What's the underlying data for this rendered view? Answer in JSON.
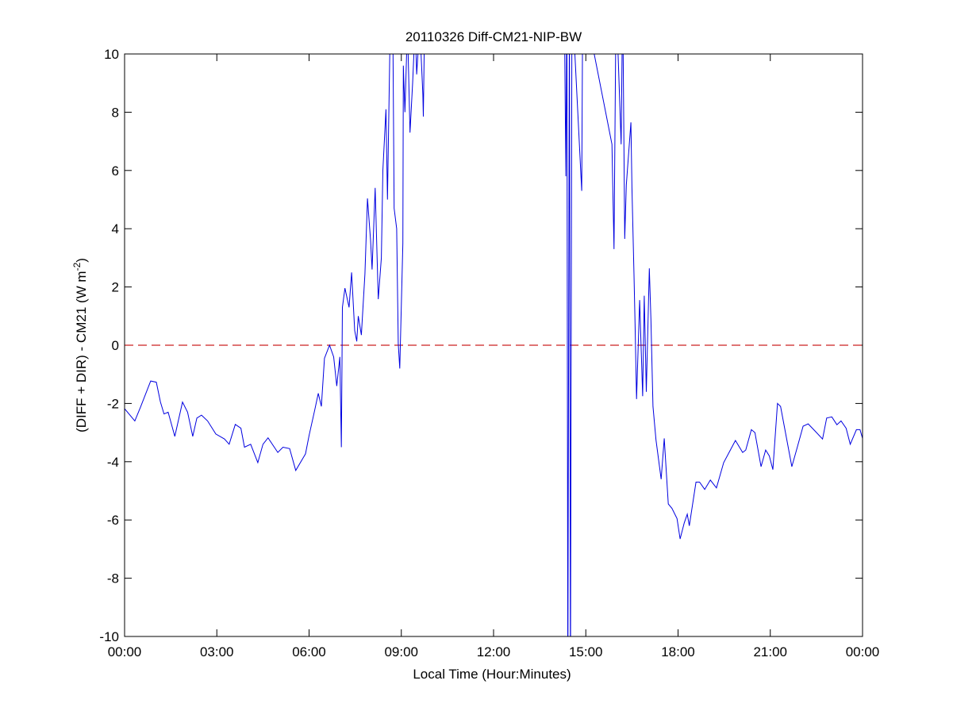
{
  "chart_data": {
    "type": "line",
    "title": "20110326 Diff-CM21-NIP-BW",
    "xlabel": "Local Time (Hour:Minutes)",
    "ylabel": "(DIFF + DIR) - CM21 (W m",
    "ylabel_sup": "-2",
    "ylabel_end": ")",
    "xlim": [
      "00:00",
      "24:00"
    ],
    "ylim": [
      -10,
      10
    ],
    "xticks": [
      "00:00",
      "03:00",
      "06:00",
      "09:00",
      "12:00",
      "15:00",
      "18:00",
      "21:00",
      "00:00"
    ],
    "yticks": [
      -10,
      -8,
      -6,
      -4,
      -2,
      0,
      2,
      4,
      6,
      8,
      10
    ],
    "grid": false,
    "line_color": "#0000e0",
    "reference_line": {
      "y": 0,
      "style": "dashed",
      "color": "#cc2222"
    },
    "series": [
      {
        "points": [
          [
            "00:00",
            -2.18
          ],
          [
            "00:20",
            -2.6
          ],
          [
            "00:31",
            -2.13
          ],
          [
            "00:51",
            -1.23
          ],
          [
            "01:02",
            -1.27
          ],
          [
            "01:10",
            -1.95
          ],
          [
            "01:17",
            -2.36
          ],
          [
            "01:25",
            -2.3
          ],
          [
            "01:38",
            -3.13
          ],
          [
            "01:53",
            -1.95
          ],
          [
            "02:03",
            -2.3
          ],
          [
            "02:13",
            -3.13
          ],
          [
            "02:21",
            -2.5
          ],
          [
            "02:30",
            -2.4
          ],
          [
            "02:42",
            -2.6
          ],
          [
            "02:58",
            -3.05
          ],
          [
            "03:15",
            -3.22
          ],
          [
            "03:24",
            -3.4
          ],
          [
            "03:36",
            -2.72
          ],
          [
            "03:47",
            -2.85
          ],
          [
            "03:54",
            -3.5
          ],
          [
            "04:06",
            -3.4
          ],
          [
            "04:20",
            -4.03
          ],
          [
            "04:30",
            -3.4
          ],
          [
            "04:40",
            -3.18
          ],
          [
            "04:59",
            -3.68
          ],
          [
            "05:09",
            -3.5
          ],
          [
            "05:22",
            -3.55
          ],
          [
            "05:34",
            -4.3
          ],
          [
            "05:53",
            -3.73
          ],
          [
            "06:00",
            -3.1
          ],
          [
            "06:11",
            -2.23
          ],
          [
            "06:18",
            -1.65
          ],
          [
            "06:24",
            -2.1
          ],
          [
            "06:30",
            -0.45
          ],
          [
            "06:40",
            0
          ],
          [
            "06:48",
            -0.4
          ],
          [
            "06:54",
            -1.4
          ],
          [
            "07:00",
            -0.4
          ],
          [
            "07:03",
            -3.5
          ],
          [
            "07:05",
            1.3
          ],
          [
            "07:10",
            1.96
          ],
          [
            "07:18",
            1.3
          ],
          [
            "07:23",
            2.5
          ],
          [
            "07:29",
            0.5
          ],
          [
            "07:33",
            0.13
          ],
          [
            "07:36",
            1.0
          ],
          [
            "07:42",
            0.35
          ],
          [
            "07:49",
            2.45
          ],
          [
            "07:54",
            5.04
          ],
          [
            "08:00",
            3.6
          ],
          [
            "08:03",
            2.6
          ],
          [
            "08:09",
            5.4
          ],
          [
            "08:15",
            1.58
          ],
          [
            "08:21",
            3.0
          ],
          [
            "08:24",
            6.0
          ],
          [
            "08:30",
            8.1
          ],
          [
            "08:33",
            5.0
          ],
          [
            "08:38",
            10.5
          ],
          [
            "08:43",
            12
          ],
          [
            "08:46",
            4.7
          ],
          [
            "08:51",
            4.0
          ],
          [
            "08:54",
            0.05
          ],
          [
            "08:57",
            -0.8
          ],
          [
            "09:03",
            3.5
          ],
          [
            "09:04",
            9.6
          ],
          [
            "09:07",
            8.0
          ],
          [
            "09:12",
            11
          ],
          [
            "09:17",
            7.3
          ],
          [
            "09:22",
            9.0
          ],
          [
            "09:27",
            11
          ],
          [
            "09:30",
            9.3
          ],
          [
            "09:36",
            11
          ],
          [
            "09:42",
            8.6
          ],
          [
            "09:43",
            7.85
          ],
          [
            "09:46",
            12
          ],
          [
            "14:18",
            12
          ],
          [
            "14:21",
            5.8
          ],
          [
            "14:23",
            12
          ],
          [
            "14:25",
            -12
          ],
          [
            "14:28",
            12
          ],
          [
            "14:30",
            -12
          ],
          [
            "14:33",
            12
          ],
          [
            "14:52",
            5.3
          ],
          [
            "14:54",
            12
          ],
          [
            "15:51",
            6.9
          ],
          [
            "15:55",
            3.3
          ],
          [
            "15:59",
            12
          ],
          [
            "16:09",
            6.9
          ],
          [
            "16:12",
            12
          ],
          [
            "16:16",
            3.65
          ],
          [
            "16:19",
            5.5
          ],
          [
            "16:28",
            7.65
          ],
          [
            "16:30",
            5.4
          ],
          [
            "16:34",
            2.4
          ],
          [
            "16:36",
            0.76
          ],
          [
            "16:39",
            -1.85
          ],
          [
            "16:45",
            1.55
          ],
          [
            "16:51",
            -1.75
          ],
          [
            "16:54",
            1.7
          ],
          [
            "16:58",
            -1.6
          ],
          [
            "17:04",
            2.64
          ],
          [
            "17:07",
            0.9
          ],
          [
            "17:11",
            -2.1
          ],
          [
            "17:17",
            -3.25
          ],
          [
            "17:27",
            -4.6
          ],
          [
            "17:33",
            -3.2
          ],
          [
            "17:41",
            -5.45
          ],
          [
            "17:48",
            -5.6
          ],
          [
            "17:58",
            -5.95
          ],
          [
            "18:04",
            -6.65
          ],
          [
            "18:12",
            -6.1
          ],
          [
            "18:18",
            -5.8
          ],
          [
            "18:22",
            -6.2
          ],
          [
            "18:35",
            -4.7
          ],
          [
            "18:42",
            -4.7
          ],
          [
            "18:52",
            -4.95
          ],
          [
            "19:03",
            -4.63
          ],
          [
            "19:15",
            -4.9
          ],
          [
            "19:29",
            -4.03
          ],
          [
            "19:42",
            -3.6
          ],
          [
            "19:52",
            -3.27
          ],
          [
            "20:06",
            -3.68
          ],
          [
            "20:12",
            -3.6
          ],
          [
            "20:23",
            -2.9
          ],
          [
            "20:30",
            -3.0
          ],
          [
            "20:42",
            -4.17
          ],
          [
            "20:51",
            -3.6
          ],
          [
            "20:58",
            -3.8
          ],
          [
            "21:05",
            -4.27
          ],
          [
            "21:14",
            -2.0
          ],
          [
            "21:20",
            -2.1
          ],
          [
            "21:42",
            -4.17
          ],
          [
            "21:52",
            -3.55
          ],
          [
            "22:04",
            -2.78
          ],
          [
            "22:14",
            -2.7
          ],
          [
            "22:27",
            -2.94
          ],
          [
            "22:42",
            -3.22
          ],
          [
            "22:50",
            -2.5
          ],
          [
            "23:00",
            -2.46
          ],
          [
            "23:10",
            -2.73
          ],
          [
            "23:18",
            -2.6
          ],
          [
            "23:28",
            -2.85
          ],
          [
            "23:36",
            -3.4
          ],
          [
            "23:48",
            -2.9
          ],
          [
            "23:55",
            -2.9
          ],
          [
            "24:00",
            -3.2
          ]
        ]
      }
    ]
  }
}
